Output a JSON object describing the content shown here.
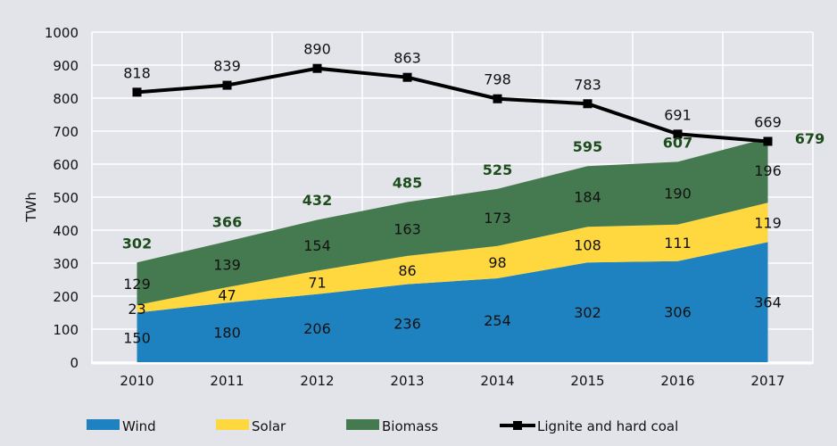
{
  "chart_data": {
    "type": "area",
    "stacked": true,
    "ylabel": "TWh",
    "xlabel": "",
    "ylim": [
      0,
      1000
    ],
    "yticks": [
      0,
      100,
      200,
      300,
      400,
      500,
      600,
      700,
      800,
      900,
      1000
    ],
    "grid": true,
    "legend_position": "bottom",
    "categories": [
      "2010",
      "2011",
      "2012",
      "2013",
      "2014",
      "2015",
      "2016",
      "2017"
    ],
    "series": [
      {
        "name": "Wind",
        "type": "area",
        "color": "#1f82c0",
        "values": [
          150,
          180,
          206,
          236,
          254,
          302,
          306,
          364
        ]
      },
      {
        "name": "Solar",
        "type": "area",
        "color": "#ffd83f",
        "values": [
          23,
          47,
          71,
          86,
          98,
          108,
          111,
          119
        ]
      },
      {
        "name": "Biomass",
        "type": "area",
        "color": "#457a50",
        "values": [
          129,
          139,
          154,
          163,
          173,
          184,
          190,
          196
        ]
      },
      {
        "name": "Lignite and hard coal",
        "type": "line",
        "color": "#000000",
        "values": [
          818,
          839,
          890,
          863,
          798,
          783,
          691,
          669
        ]
      }
    ],
    "totals": {
      "color": "#1d4d1d",
      "values": [
        302,
        366,
        432,
        485,
        525,
        595,
        607,
        679
      ]
    }
  }
}
